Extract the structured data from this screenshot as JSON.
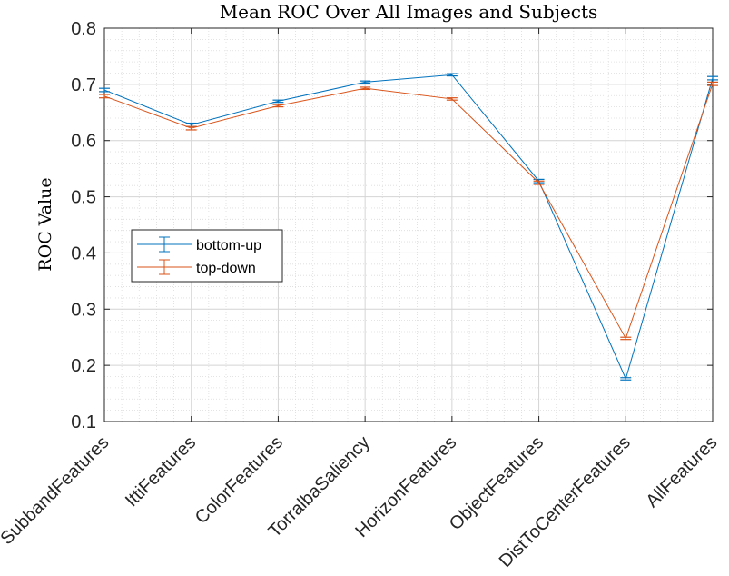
{
  "chart_data": {
    "type": "line",
    "title": "Mean ROC Over All Images and Subjects",
    "xlabel": "",
    "ylabel": "ROC Value",
    "categories": [
      "SubbandFeatures",
      "IttiFeatures",
      "ColorFeatures",
      "TorralbaSaliency",
      "HorizonFeatures",
      "ObjectFeatures",
      "DistToCenterFeatures",
      "AllFeatures"
    ],
    "ylim": [
      0.1,
      0.8
    ],
    "yticks": [
      "0.1",
      "0.2",
      "0.3",
      "0.4",
      "0.5",
      "0.6",
      "0.7",
      "0.8"
    ],
    "grid": true,
    "minor_grid": true,
    "legend_position": "center-left",
    "series": [
      {
        "name": "bottom-up",
        "color": "#0072BD",
        "values": [
          0.69,
          0.628,
          0.67,
          0.704,
          0.717,
          0.528,
          0.176,
          0.711
        ],
        "errors": [
          0.003,
          0.003,
          0.002,
          0.002,
          0.002,
          0.003,
          0.002,
          0.003
        ]
      },
      {
        "name": "top-down",
        "color": "#D95319",
        "values": [
          0.679,
          0.622,
          0.662,
          0.693,
          0.674,
          0.525,
          0.248,
          0.701
        ],
        "errors": [
          0.003,
          0.003,
          0.002,
          0.002,
          0.002,
          0.003,
          0.002,
          0.003
        ]
      }
    ]
  }
}
